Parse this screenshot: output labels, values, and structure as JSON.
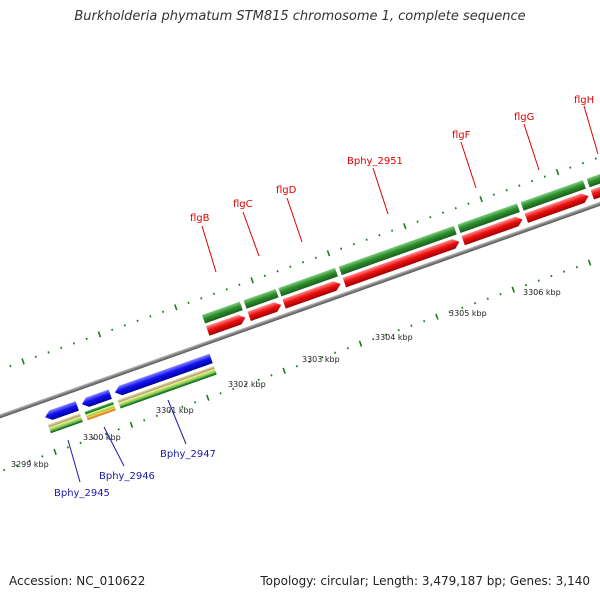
{
  "title": "Burkholderia phymatum STM815 chromosome 1, complete sequence",
  "accession": "Accession: NC_010622",
  "topology": "Topology: circular; Length: 3,479,187 bp; Genes: 3,140",
  "ruler": {
    "ticks": [
      "3299 kbp",
      "3300 kbp",
      "3301 kbp",
      "3302 kbp",
      "3303 kbp",
      "3304 kbp",
      "3305 kbp",
      "3306 kbp"
    ]
  },
  "genes_forward": [
    {
      "label": "flgB",
      "color": "#dd0000"
    },
    {
      "label": "flgC",
      "color": "#dd0000"
    },
    {
      "label": "flgD",
      "color": "#dd0000"
    },
    {
      "label": "Bphy_2951",
      "color": "#dd0000"
    },
    {
      "label": "flgF",
      "color": "#dd0000"
    },
    {
      "label": "flgG",
      "color": "#dd0000"
    },
    {
      "label": "flgH",
      "color": "#dd0000"
    }
  ],
  "genes_reverse": [
    {
      "label": "Bphy_2945",
      "color": "#1a1aaa"
    },
    {
      "label": "Bphy_2946",
      "color": "#1a1aaa"
    },
    {
      "label": "Bphy_2947",
      "color": "#1a1aaa"
    }
  ],
  "colors": {
    "backbone": "#8a8a8a",
    "cds_forward": "#ee1111",
    "cds_reverse": "#1111ee",
    "gene_green": "#2f8f2f",
    "ruler_tick": "#1f7a1f"
  }
}
